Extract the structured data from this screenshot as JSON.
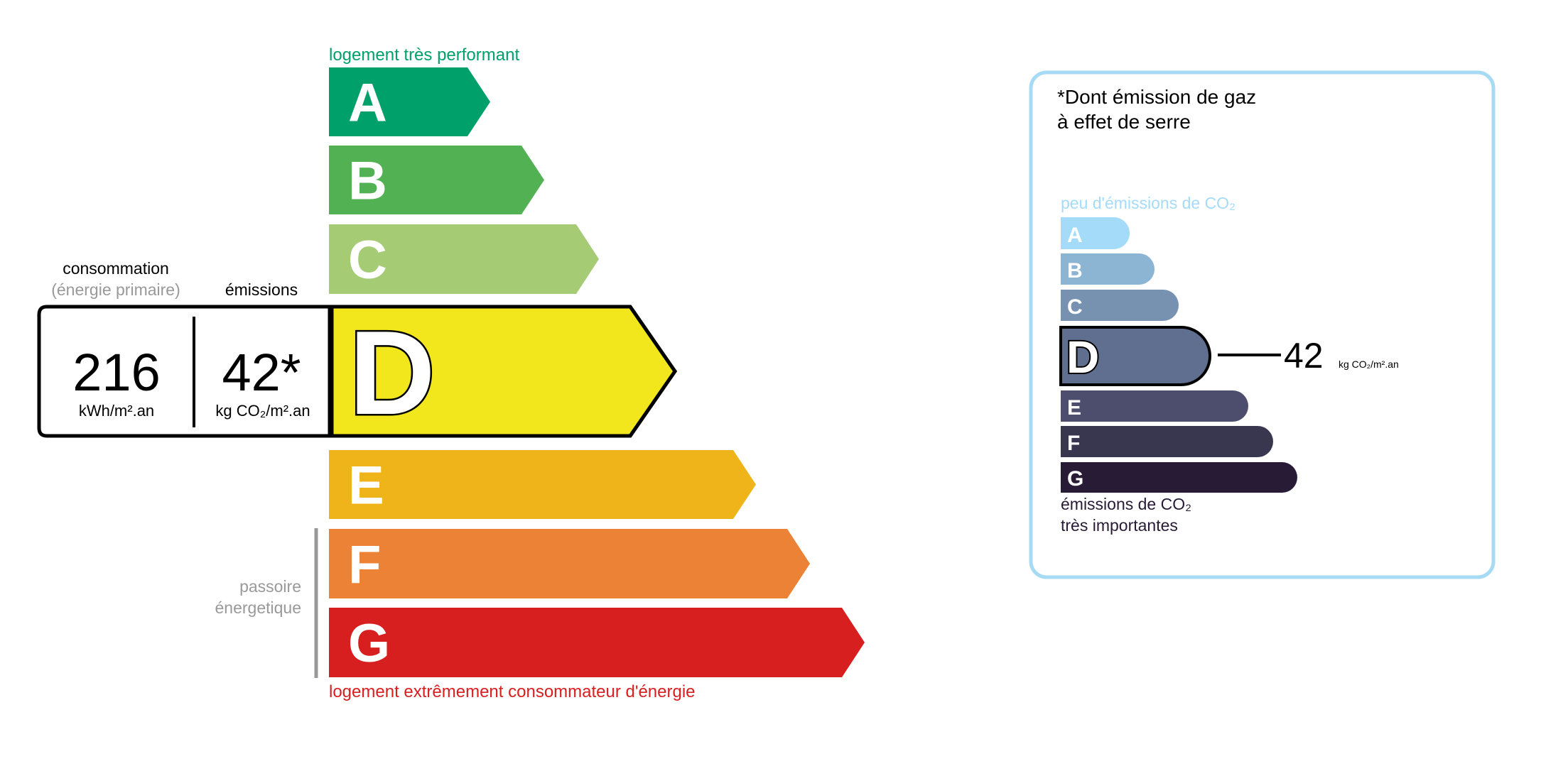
{
  "energy": {
    "top_label": "logement très performant",
    "bottom_label": "logement extrêmement consommateur d'énergie",
    "passoire_line1": "passoire",
    "passoire_line2": "énergetique",
    "consumption_header": "consommation",
    "consumption_sub": "(énergie primaire)",
    "emissions_header": "émissions",
    "consumption_value": "216",
    "consumption_unit": "kWh/m².an",
    "emissions_value": "42*",
    "emissions_unit": "kg CO₂/m².an",
    "current_class": "D",
    "classes": [
      {
        "letter": "A",
        "color": "#00a06b"
      },
      {
        "letter": "B",
        "color": "#52b153"
      },
      {
        "letter": "C",
        "color": "#a5cc74"
      },
      {
        "letter": "D",
        "color": "#f2e61c"
      },
      {
        "letter": "E",
        "color": "#efb419"
      },
      {
        "letter": "F",
        "color": "#eb8235"
      },
      {
        "letter": "G",
        "color": "#d71f20"
      }
    ],
    "top_label_color": "#00a06b",
    "bottom_label_color": "#d71f20"
  },
  "ges": {
    "title_line1": "*Dont émission de gaz",
    "title_line2": "à effet de serre",
    "top_label": "peu d'émissions de CO₂",
    "bottom_line1": "émissions de CO₂",
    "bottom_line2": "très importantes",
    "value": "42",
    "unit": "kg CO₂/m².an",
    "current_class": "D",
    "border_color": "#a6daf5",
    "classes": [
      {
        "letter": "A",
        "color": "#a4dbf8"
      },
      {
        "letter": "B",
        "color": "#8cb4d3"
      },
      {
        "letter": "C",
        "color": "#7792b1"
      },
      {
        "letter": "D",
        "color": "#606f8f"
      },
      {
        "letter": "E",
        "color": "#4d4e6e"
      },
      {
        "letter": "F",
        "color": "#39364f"
      },
      {
        "letter": "G",
        "color": "#281b35"
      }
    ]
  }
}
